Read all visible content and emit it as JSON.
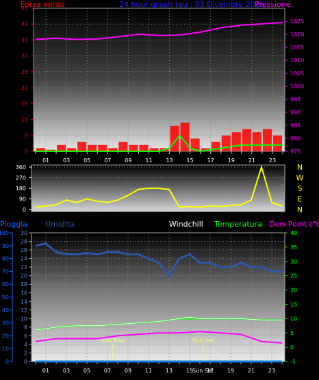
{
  "colors": {
    "wind": "#ff0000",
    "wind_gust": "#ff1010",
    "pressure": "#ff00ff",
    "direction": "#ffff00",
    "humidity": "#2a5aa8",
    "temperature": "#00ff00",
    "dew_point": "#ff00ff",
    "windchill": "#ffffff",
    "rain": "#0a7de0",
    "sun": "#ffff66",
    "title": "#2222ff",
    "axis_left": "#ff0000",
    "axis_right": "#ff00ff",
    "axis_green": "#00ff00",
    "axis_blue": "#1a66ff"
  },
  "panel1": {
    "left_label": "Forza vento",
    "title": "24 hour graph (au : 03 Dicembre 2016",
    "right_label": "Pressione"
  },
  "panel2": {
    "compass_labels": [
      "N",
      "W",
      "S",
      "E",
      "N"
    ]
  },
  "panel3": {
    "rain_label": "Pioggia",
    "humidity_label": "Umidita",
    "windchill_label": "Windchill",
    "temperature_label": "Temperatura",
    "dewpoint_label": "Dew Point (°C)",
    "sun_rise_label": "Sun Rise",
    "sun_set_label": "Sun Set",
    "sun_set_axis_label": "Sun Set"
  },
  "chart_data": [
    {
      "type": "line",
      "name": "wind-pressure",
      "x_ticks": [
        "01",
        "03",
        "05",
        "07",
        "09",
        "11",
        "13",
        "15",
        "17",
        "19",
        "21",
        "23"
      ],
      "ylim_left": [
        0,
        45
      ],
      "yticks_left": [
        0,
        5,
        10,
        15,
        20,
        25,
        30,
        35,
        40,
        45
      ],
      "ylim_right": [
        975,
        1030
      ],
      "yticks_right": [
        975,
        980,
        985,
        990,
        995,
        1000,
        1005,
        1010,
        1015,
        1020,
        1025
      ],
      "series": [
        {
          "name": "Pressione",
          "axis": "right",
          "x": [
            0,
            2,
            4,
            6,
            8,
            10,
            12,
            14,
            16,
            18,
            20,
            22,
            24
          ],
          "values": [
            1018,
            1018.5,
            1018,
            1018.2,
            1019,
            1020,
            1019.5,
            1019.7,
            1020.8,
            1022.5,
            1023.5,
            1024,
            1024.5
          ]
        },
        {
          "name": "Forza vento",
          "axis": "left",
          "x": [
            0,
            1,
            2,
            3,
            4,
            5,
            6,
            7,
            8,
            9,
            10,
            11,
            12,
            13,
            14,
            15,
            16,
            17,
            18,
            19,
            20,
            21,
            22,
            23,
            24
          ],
          "values": [
            1,
            0.5,
            2,
            1,
            3,
            2,
            2,
            1,
            3,
            2,
            2,
            1,
            1,
            8,
            9,
            4,
            1,
            3,
            5,
            6,
            7,
            6,
            7,
            5,
            4
          ]
        },
        {
          "name": "Raffica",
          "axis": "left",
          "x": [
            0,
            2,
            4,
            6,
            8,
            10,
            12,
            13,
            14,
            15,
            16,
            18,
            20,
            22,
            24
          ],
          "values": [
            0,
            0,
            0,
            0,
            0,
            0,
            0,
            1,
            5,
            1,
            0,
            1,
            2,
            2,
            2
          ]
        }
      ]
    },
    {
      "type": "line",
      "name": "wind-direction",
      "x_ticks": [
        "01",
        "03",
        "05",
        "07",
        "09",
        "11",
        "13",
        "15",
        "17",
        "19",
        "21",
        "23"
      ],
      "ylim": [
        0,
        360
      ],
      "yticks": [
        0,
        90,
        180,
        270,
        360
      ],
      "series": [
        {
          "name": "direction",
          "x": [
            0,
            1,
            2,
            3,
            4,
            5,
            6,
            7,
            8,
            9,
            10,
            11,
            12,
            13,
            14,
            15,
            16,
            17,
            18,
            19,
            20,
            21,
            22,
            23,
            24
          ],
          "values": [
            20,
            30,
            40,
            80,
            60,
            90,
            70,
            60,
            80,
            120,
            170,
            180,
            180,
            170,
            20,
            25,
            20,
            30,
            25,
            35,
            40,
            80,
            360,
            60,
            30
          ]
        }
      ]
    },
    {
      "type": "line",
      "name": "humidity-temperature",
      "x_ticks": [
        "01",
        "03",
        "05",
        "07",
        "09",
        "11",
        "13",
        "15",
        "Sun Set",
        "17",
        "19",
        "21",
        "23"
      ],
      "ylim_rain": [
        0,
        100
      ],
      "yticks_rain": [
        0,
        10,
        20,
        30,
        40,
        50,
        60,
        70,
        80,
        90,
        100
      ],
      "ylim_humidity": [
        0,
        30
      ],
      "yticks_humidity": [
        0,
        2,
        4,
        6,
        8,
        10,
        12,
        14,
        16,
        18,
        20,
        22,
        24,
        26,
        28,
        30
      ],
      "ylim_temperature": [
        -5,
        40
      ],
      "yticks_temperature": [
        -5,
        0,
        5,
        10,
        15,
        20,
        25,
        30,
        35,
        40
      ],
      "series": [
        {
          "name": "Umidita",
          "axis": "humidity",
          "x": [
            0,
            1,
            2,
            3,
            4,
            5,
            6,
            7,
            8,
            9,
            10,
            11,
            12,
            13,
            14,
            15,
            16,
            17,
            18,
            19,
            20,
            21,
            22,
            23,
            24
          ],
          "values": [
            27,
            27.5,
            25.5,
            25,
            25,
            25.3,
            25,
            25.5,
            25.5,
            25,
            25,
            24,
            23,
            20,
            24,
            25,
            23,
            23,
            22,
            22,
            23,
            22,
            22,
            21,
            21
          ]
        },
        {
          "name": "Temperatura",
          "axis": "temperature",
          "x": [
            0,
            2,
            4,
            6,
            8,
            10,
            12,
            14,
            16,
            18,
            20,
            22,
            24
          ],
          "values": [
            6,
            7,
            7.5,
            7.5,
            8,
            8.5,
            9,
            10,
            10,
            10,
            10,
            9.5,
            9.5
          ]
        },
        {
          "name": "Dew Point",
          "axis": "temperature",
          "x": [
            0,
            2,
            4,
            6,
            8,
            10,
            12,
            14,
            16,
            18,
            20,
            22,
            24
          ],
          "values": [
            2,
            3,
            3,
            3,
            4,
            4.5,
            5,
            5,
            5.5,
            5,
            4.5,
            2,
            1.5
          ]
        },
        {
          "name": "Windchill",
          "axis": "temperature",
          "x": [
            0,
            2,
            4,
            6,
            8,
            10,
            12,
            14,
            15,
            16,
            18,
            20,
            22,
            24
          ],
          "values": [
            6,
            7,
            7.5,
            7.5,
            8,
            8.5,
            9,
            10,
            10.5,
            10,
            10,
            10,
            9.5,
            9.5
          ]
        },
        {
          "name": "Pioggia",
          "axis": "rain",
          "x": [
            0,
            24
          ],
          "values": [
            0,
            0
          ]
        }
      ],
      "sun_rise_hour": 7.5,
      "sun_set_hour": 16.3
    }
  ]
}
